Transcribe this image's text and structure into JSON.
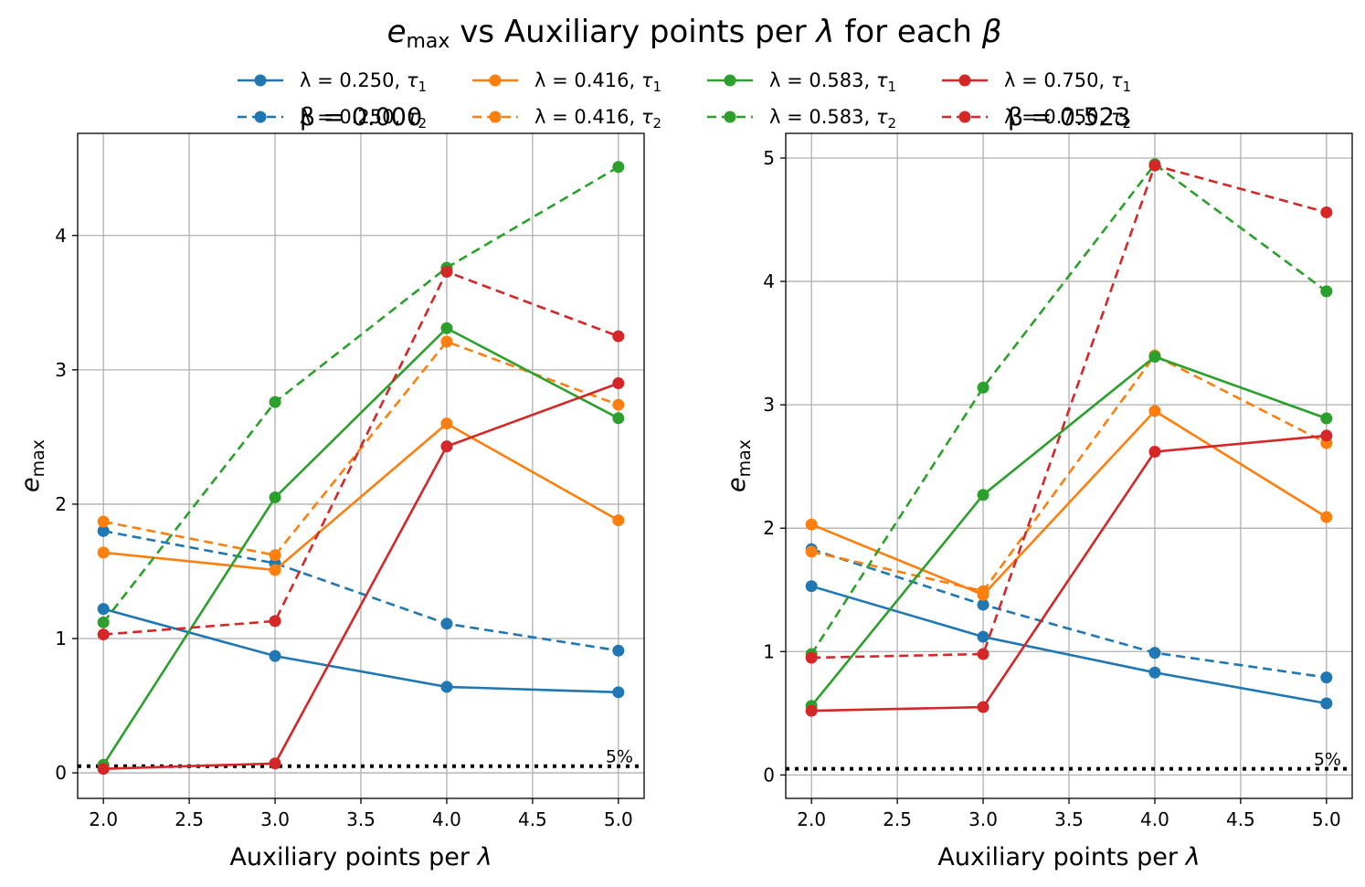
{
  "title": "e_max vs Auxiliary points per λ for each β",
  "title_parts": {
    "e": "e",
    "max": "max",
    "rest": " vs Auxiliary points per ",
    "lambda": "λ",
    "for": " for each ",
    "beta": "β"
  },
  "colors": {
    "blue": "#1f77b4",
    "orange": "#ff7f0e",
    "green": "#2ca02c",
    "red": "#d62728",
    "threshold": "#000000",
    "grid": "#b0b0b0"
  },
  "legend": {
    "placement": "top-center, above plots, 4 columns",
    "entries": [
      {
        "lam": "λ = 0.250,",
        "tau": "τ",
        "sub": "1",
        "color": "#1f77b4",
        "style": "solid"
      },
      {
        "lam": "λ = 0.250,",
        "tau": "τ",
        "sub": "2",
        "color": "#1f77b4",
        "style": "dashed"
      },
      {
        "lam": "λ = 0.416,",
        "tau": "τ",
        "sub": "1",
        "color": "#ff7f0e",
        "style": "solid"
      },
      {
        "lam": "λ = 0.416,",
        "tau": "τ",
        "sub": "2",
        "color": "#ff7f0e",
        "style": "dashed"
      },
      {
        "lam": "λ = 0.583,",
        "tau": "τ",
        "sub": "1",
        "color": "#2ca02c",
        "style": "solid"
      },
      {
        "lam": "λ = 0.583,",
        "tau": "τ",
        "sub": "2",
        "color": "#2ca02c",
        "style": "dashed"
      },
      {
        "lam": "λ = 0.750,",
        "tau": "τ",
        "sub": "1",
        "color": "#d62728",
        "style": "solid"
      },
      {
        "lam": "λ = 0.750,",
        "tau": "τ",
        "sub": "2",
        "color": "#d62728",
        "style": "dashed"
      }
    ]
  },
  "chart_data": [
    {
      "type": "line",
      "title": "β = 0.000",
      "xlabel": "Auxiliary points per λ",
      "ylabel": "e_max",
      "x": [
        2.0,
        3.0,
        4.0,
        5.0
      ],
      "xlim": [
        1.85,
        5.15
      ],
      "ylim": [
        -0.19,
        4.76
      ],
      "xticks": [
        "2.0",
        "2.5",
        "3.0",
        "3.5",
        "4.0",
        "4.5",
        "5.0"
      ],
      "yticks": [
        "0",
        "1",
        "2",
        "3",
        "4"
      ],
      "grid": true,
      "threshold": {
        "y": 0.05,
        "label": "5%",
        "style": "dotted"
      },
      "series": [
        {
          "name": "λ = 0.250, τ1",
          "color": "#1f77b4",
          "style": "solid",
          "values": [
            1.22,
            0.87,
            0.64,
            0.6
          ]
        },
        {
          "name": "λ = 0.250, τ2",
          "color": "#1f77b4",
          "style": "dashed",
          "values": [
            1.8,
            1.56,
            1.11,
            0.91
          ]
        },
        {
          "name": "λ = 0.416, τ1",
          "color": "#ff7f0e",
          "style": "solid",
          "values": [
            1.64,
            1.51,
            2.6,
            1.88
          ]
        },
        {
          "name": "λ = 0.416, τ2",
          "color": "#ff7f0e",
          "style": "dashed",
          "values": [
            1.87,
            1.62,
            3.21,
            2.74
          ]
        },
        {
          "name": "λ = 0.583, τ1",
          "color": "#2ca02c",
          "style": "solid",
          "values": [
            0.06,
            2.05,
            3.31,
            2.64
          ]
        },
        {
          "name": "λ = 0.583, τ2",
          "color": "#2ca02c",
          "style": "dashed",
          "values": [
            1.12,
            2.76,
            3.76,
            4.51
          ]
        },
        {
          "name": "λ = 0.750, τ1",
          "color": "#d62728",
          "style": "solid",
          "values": [
            0.03,
            0.07,
            2.43,
            2.9
          ]
        },
        {
          "name": "λ = 0.750, τ2",
          "color": "#d62728",
          "style": "dashed",
          "values": [
            1.03,
            1.13,
            3.73,
            3.25
          ]
        }
      ]
    },
    {
      "type": "line",
      "title": "β = 0.523",
      "xlabel": "Auxiliary points per λ",
      "ylabel": "e_max",
      "x": [
        2.0,
        3.0,
        4.0,
        5.0
      ],
      "xlim": [
        1.85,
        5.15
      ],
      "ylim": [
        -0.19,
        5.2
      ],
      "xticks": [
        "2.0",
        "2.5",
        "3.0",
        "3.5",
        "4.0",
        "4.5",
        "5.0"
      ],
      "yticks": [
        "0",
        "1",
        "2",
        "3",
        "4",
        "5"
      ],
      "grid": true,
      "threshold": {
        "y": 0.05,
        "label": "5%",
        "style": "dotted"
      },
      "series": [
        {
          "name": "λ = 0.250, τ1",
          "color": "#1f77b4",
          "style": "solid",
          "values": [
            1.53,
            1.12,
            0.83,
            0.58
          ]
        },
        {
          "name": "λ = 0.250, τ2",
          "color": "#1f77b4",
          "style": "dashed",
          "values": [
            1.83,
            1.38,
            0.99,
            0.79
          ]
        },
        {
          "name": "λ = 0.416, τ1",
          "color": "#ff7f0e",
          "style": "solid",
          "values": [
            2.03,
            1.46,
            2.95,
            2.09
          ]
        },
        {
          "name": "λ = 0.416, τ2",
          "color": "#ff7f0e",
          "style": "dashed",
          "values": [
            1.81,
            1.49,
            3.4,
            2.69
          ]
        },
        {
          "name": "λ = 0.583, τ1",
          "color": "#2ca02c",
          "style": "solid",
          "values": [
            0.56,
            2.27,
            3.39,
            2.89
          ]
        },
        {
          "name": "λ = 0.583, τ2",
          "color": "#2ca02c",
          "style": "dashed",
          "values": [
            0.98,
            3.14,
            4.95,
            3.92
          ]
        },
        {
          "name": "λ = 0.750, τ1",
          "color": "#d62728",
          "style": "solid",
          "values": [
            0.52,
            0.55,
            2.62,
            2.75
          ]
        },
        {
          "name": "λ = 0.750, τ2",
          "color": "#d62728",
          "style": "dashed",
          "values": [
            0.95,
            0.98,
            4.94,
            4.56
          ]
        }
      ]
    }
  ]
}
